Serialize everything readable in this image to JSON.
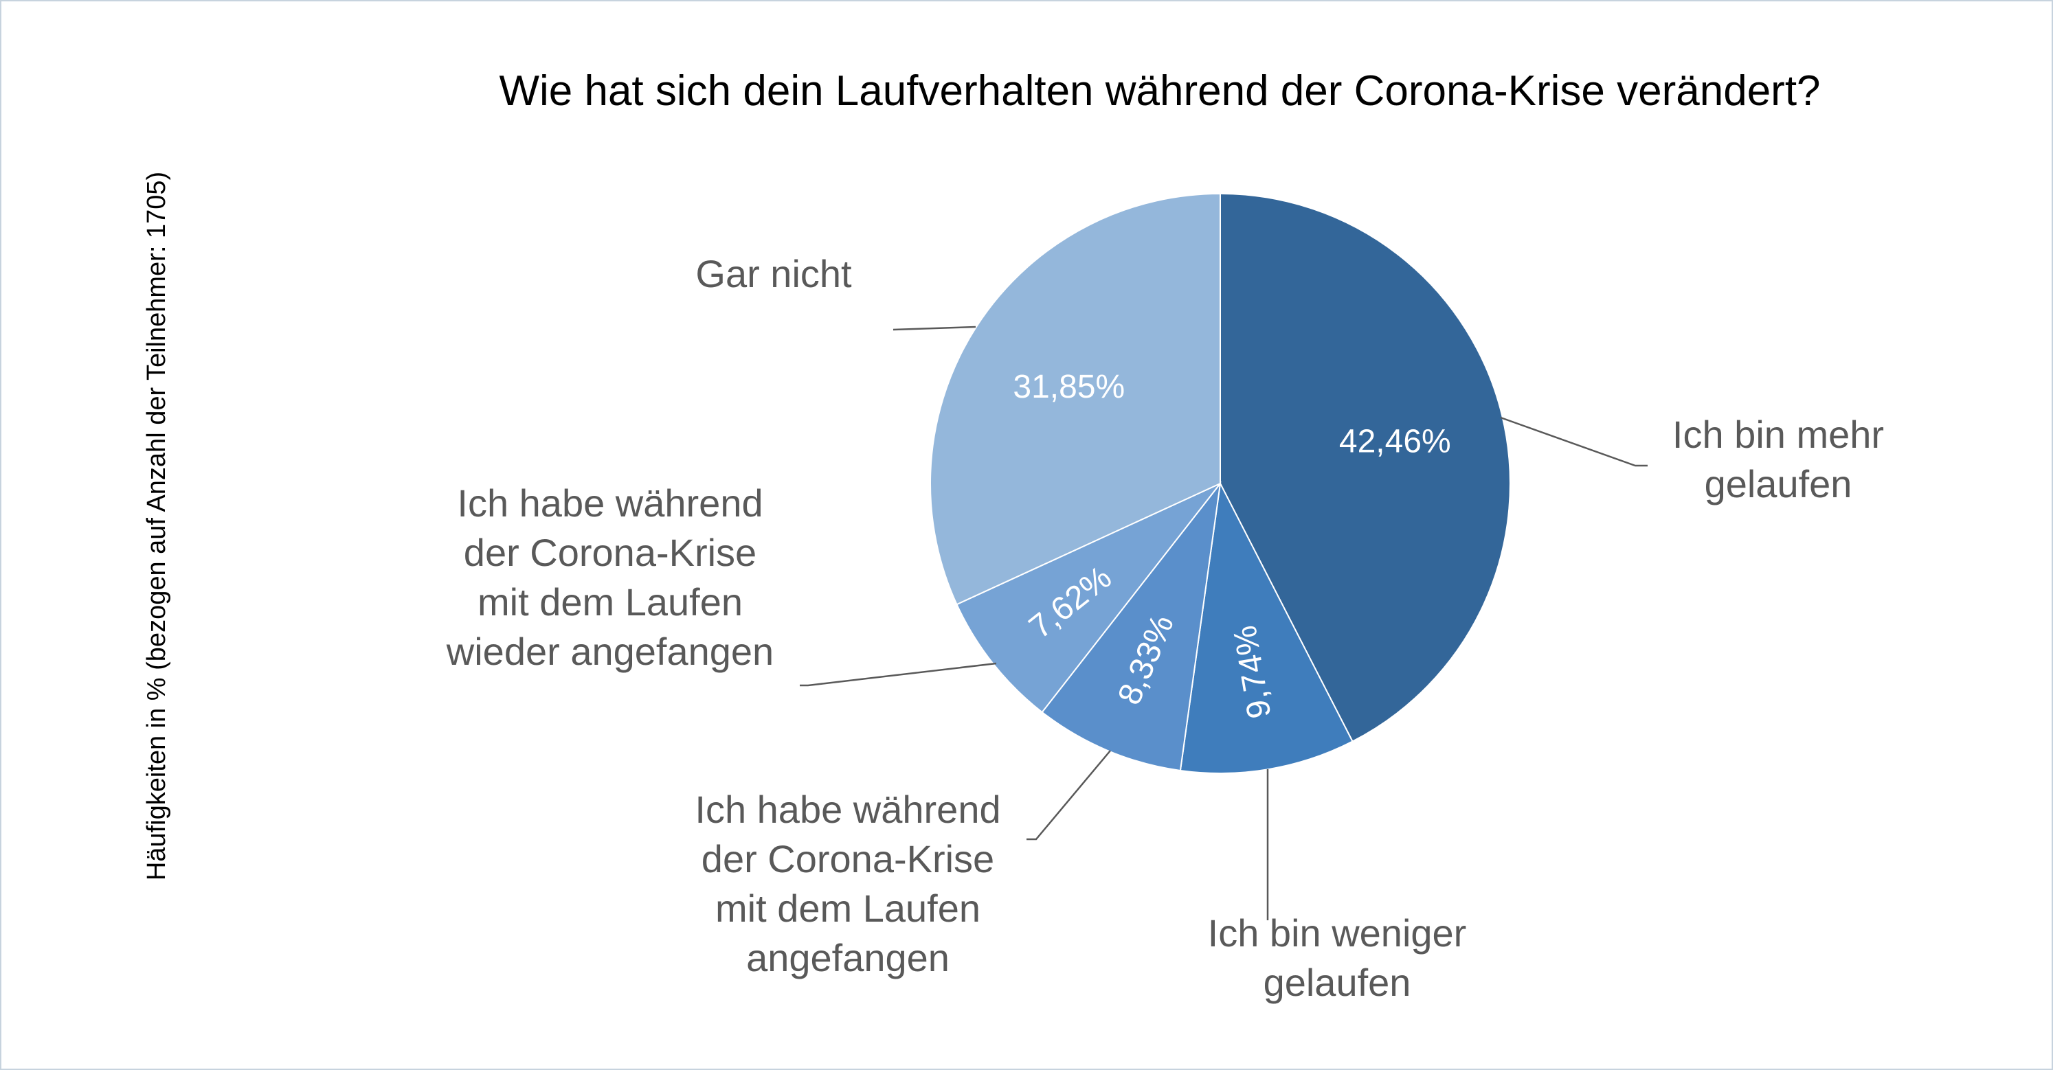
{
  "chart_data": {
    "type": "pie",
    "title": "Wie hat sich dein Laufverhalten während der Corona-Krise verändert?",
    "ylabel": "Häufigkeiten in % (bezogen auf Anzahl der Teilnehmer: 1705)",
    "slices": [
      {
        "value": 42.46,
        "value_label": "42,46%",
        "label_lines": [
          "Ich bin mehr",
          "gelaufen"
        ],
        "color": "#336699"
      },
      {
        "value": 9.74,
        "value_label": "9,74%",
        "label_lines": [
          "Ich bin weniger",
          "gelaufen"
        ],
        "color": "#3f7dbc"
      },
      {
        "value": 8.33,
        "value_label": "8,33%",
        "label_lines": [
          "Ich habe während",
          "der Corona-Krise",
          "mit dem Laufen",
          "angefangen"
        ],
        "color": "#5a8fcb"
      },
      {
        "value": 7.62,
        "value_label": "7,62%",
        "label_lines": [
          "Ich habe während",
          "der Corona-Krise",
          "mit dem Laufen",
          "wieder angefangen"
        ],
        "color": "#76a3d5"
      },
      {
        "value": 31.85,
        "value_label": "31,85%",
        "label_lines": [
          "Gar nicht"
        ],
        "color": "#94b7db"
      }
    ]
  }
}
